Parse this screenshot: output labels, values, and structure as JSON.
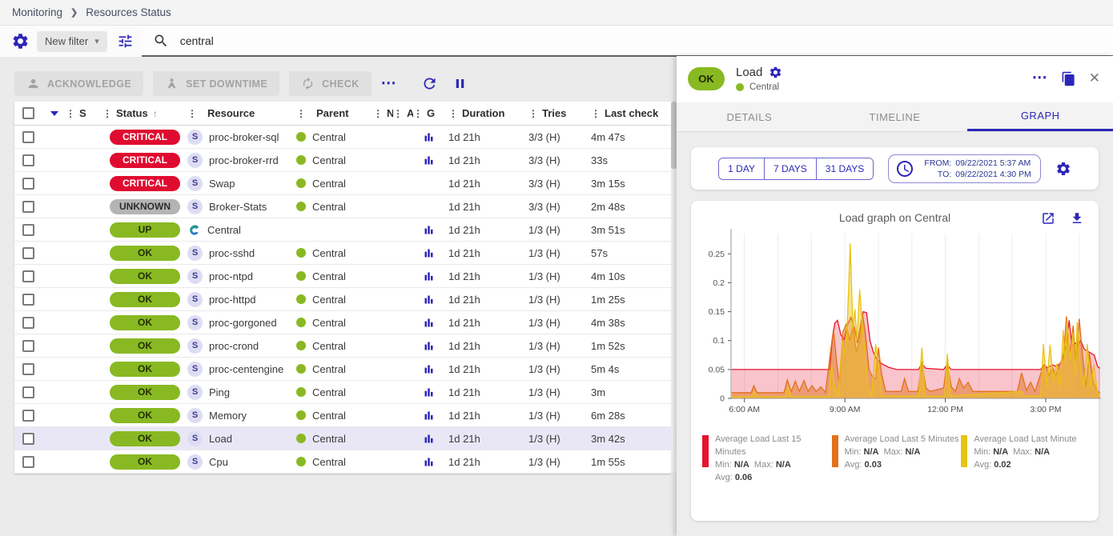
{
  "breadcrumb": {
    "items": [
      "Monitoring",
      "Resources Status"
    ]
  },
  "icons": {
    "drag": "⋮",
    "sort_asc": "↑",
    "caret_down": "▾",
    "more": "⋯",
    "close": "✕",
    "chevron": "❯"
  },
  "filter_bar": {
    "new_filter_label": "New filter",
    "search_value": "central"
  },
  "toolbar": {
    "acknowledge": "ACKNOWLEDGE",
    "set_downtime": "SET DOWNTIME",
    "check": "CHECK"
  },
  "table": {
    "columns": [
      "S",
      "Status",
      "Resource",
      "Parent",
      "N",
      "A",
      "G",
      "Duration",
      "Tries",
      "Last check"
    ],
    "rows": [
      {
        "status": "CRITICAL",
        "severity": "critical",
        "resource": "proc-broker-sql",
        "resource_icon": "service",
        "parent": "Central",
        "graph": true,
        "duration": "1d 21h",
        "tries": "3/3 (H)",
        "last_check": "4m 47s",
        "selected": false
      },
      {
        "status": "CRITICAL",
        "severity": "critical",
        "resource": "proc-broker-rrd",
        "resource_icon": "service",
        "parent": "Central",
        "graph": true,
        "duration": "1d 21h",
        "tries": "3/3 (H)",
        "last_check": "33s",
        "selected": false
      },
      {
        "status": "CRITICAL",
        "severity": "critical",
        "resource": "Swap",
        "resource_icon": "service",
        "parent": "Central",
        "graph": false,
        "duration": "1d 21h",
        "tries": "3/3 (H)",
        "last_check": "3m 15s",
        "selected": false
      },
      {
        "status": "UNKNOWN",
        "severity": "unknown",
        "resource": "Broker-Stats",
        "resource_icon": "service",
        "parent": "Central",
        "graph": false,
        "duration": "1d 21h",
        "tries": "3/3 (H)",
        "last_check": "2m 48s",
        "selected": false
      },
      {
        "status": "UP",
        "severity": "up",
        "resource": "Central",
        "resource_icon": "host",
        "parent": "",
        "graph": true,
        "duration": "1d 21h",
        "tries": "1/3 (H)",
        "last_check": "3m 51s",
        "selected": false
      },
      {
        "status": "OK",
        "severity": "ok",
        "resource": "proc-sshd",
        "resource_icon": "service",
        "parent": "Central",
        "graph": true,
        "duration": "1d 21h",
        "tries": "1/3 (H)",
        "last_check": "57s",
        "selected": false
      },
      {
        "status": "OK",
        "severity": "ok",
        "resource": "proc-ntpd",
        "resource_icon": "service",
        "parent": "Central",
        "graph": true,
        "duration": "1d 21h",
        "tries": "1/3 (H)",
        "last_check": "4m 10s",
        "selected": false
      },
      {
        "status": "OK",
        "severity": "ok",
        "resource": "proc-httpd",
        "resource_icon": "service",
        "parent": "Central",
        "graph": true,
        "duration": "1d 21h",
        "tries": "1/3 (H)",
        "last_check": "1m 25s",
        "selected": false
      },
      {
        "status": "OK",
        "severity": "ok",
        "resource": "proc-gorgoned",
        "resource_icon": "service",
        "parent": "Central",
        "graph": true,
        "duration": "1d 21h",
        "tries": "1/3 (H)",
        "last_check": "4m 38s",
        "selected": false
      },
      {
        "status": "OK",
        "severity": "ok",
        "resource": "proc-crond",
        "resource_icon": "service",
        "parent": "Central",
        "graph": true,
        "duration": "1d 21h",
        "tries": "1/3 (H)",
        "last_check": "1m 52s",
        "selected": false
      },
      {
        "status": "OK",
        "severity": "ok",
        "resource": "proc-centengine",
        "resource_icon": "service",
        "parent": "Central",
        "graph": true,
        "duration": "1d 21h",
        "tries": "1/3 (H)",
        "last_check": "5m 4s",
        "selected": false
      },
      {
        "status": "OK",
        "severity": "ok",
        "resource": "Ping",
        "resource_icon": "service",
        "parent": "Central",
        "graph": true,
        "duration": "1d 21h",
        "tries": "1/3 (H)",
        "last_check": "3m",
        "selected": false
      },
      {
        "status": "OK",
        "severity": "ok",
        "resource": "Memory",
        "resource_icon": "service",
        "parent": "Central",
        "graph": true,
        "duration": "1d 21h",
        "tries": "1/3 (H)",
        "last_check": "6m 28s",
        "selected": false
      },
      {
        "status": "OK",
        "severity": "ok",
        "resource": "Load",
        "resource_icon": "service",
        "parent": "Central",
        "graph": true,
        "duration": "1d 21h",
        "tries": "1/3 (H)",
        "last_check": "3m 42s",
        "selected": true
      },
      {
        "status": "OK",
        "severity": "ok",
        "resource": "Cpu",
        "resource_icon": "service",
        "parent": "Central",
        "graph": true,
        "duration": "1d 21h",
        "tries": "1/3 (H)",
        "last_check": "1m 55s",
        "selected": false
      }
    ]
  },
  "panel": {
    "status": "OK",
    "title": "Load",
    "subtitle": "Central",
    "tabs": [
      {
        "label": "DETAILS"
      },
      {
        "label": "TIMELINE"
      },
      {
        "label": "GRAPH"
      }
    ],
    "range_buttons": [
      "1 DAY",
      "7 DAYS",
      "31 DAYS"
    ],
    "from_label": "FROM:",
    "from_value": "09/22/2021 5:37 AM",
    "to_label": "TO:",
    "to_value": "09/22/2021 4:30 PM"
  },
  "legend_labels": {
    "min": "Min:",
    "max": "Max:",
    "avg": "Avg:"
  },
  "colors": {
    "accent": "#2c26b8",
    "critical": "#e00b30",
    "success": "#88b922",
    "unknown": "#b4b4b4",
    "selected_row": "#e9e7f6"
  },
  "chart_data": {
    "type": "area",
    "title": "Load graph on Central",
    "xlabel": "",
    "ylabel": "",
    "xlim_hours": [
      5.6,
      16.65
    ],
    "ylim": [
      0,
      0.285
    ],
    "grid": "vertical-hourly",
    "legend_position": "bottom",
    "x_ticks": [
      {
        "hour": 6,
        "label": "6:00 AM"
      },
      {
        "hour": 9,
        "label": "9:00 AM"
      },
      {
        "hour": 12,
        "label": "12:00 PM"
      },
      {
        "hour": 15,
        "label": "3:00 PM"
      }
    ],
    "y_ticks": [
      {
        "v": 0,
        "label": "0"
      },
      {
        "v": 0.05,
        "label": "0.05"
      },
      {
        "v": 0.1,
        "label": "0.1"
      },
      {
        "v": 0.15,
        "label": "0.15"
      },
      {
        "v": 0.2,
        "label": "0.2"
      },
      {
        "v": 0.25,
        "label": "0.25"
      }
    ],
    "series": [
      {
        "name": "Average Load Last 15 Minutes",
        "color": "#e8132e",
        "fill_opacity": 0.25,
        "min": "N/A",
        "max": "N/A",
        "avg": "0.06",
        "points": [
          [
            5.62,
            0.05
          ],
          [
            8.55,
            0.05
          ],
          [
            8.62,
            0.1
          ],
          [
            8.7,
            0.13
          ],
          [
            8.78,
            0.135
          ],
          [
            8.88,
            0.11
          ],
          [
            8.98,
            0.102
          ],
          [
            9.08,
            0.128
          ],
          [
            9.18,
            0.14
          ],
          [
            9.28,
            0.122
          ],
          [
            9.38,
            0.096
          ],
          [
            9.48,
            0.13
          ],
          [
            9.55,
            0.15
          ],
          [
            9.65,
            0.148
          ],
          [
            9.75,
            0.1
          ],
          [
            9.85,
            0.08
          ],
          [
            9.95,
            0.068
          ],
          [
            10.1,
            0.06
          ],
          [
            10.3,
            0.054
          ],
          [
            10.55,
            0.05
          ],
          [
            11.2,
            0.05
          ],
          [
            11.3,
            0.06
          ],
          [
            11.42,
            0.052
          ],
          [
            11.95,
            0.05
          ],
          [
            12.05,
            0.058
          ],
          [
            12.18,
            0.05
          ],
          [
            14.85,
            0.05
          ],
          [
            14.95,
            0.058
          ],
          [
            15.05,
            0.053
          ],
          [
            15.2,
            0.058
          ],
          [
            15.32,
            0.055
          ],
          [
            15.45,
            0.062
          ],
          [
            15.55,
            0.08
          ],
          [
            15.62,
            0.095
          ],
          [
            15.7,
            0.135
          ],
          [
            15.78,
            0.09
          ],
          [
            15.88,
            0.096
          ],
          [
            15.95,
            0.09
          ],
          [
            16.05,
            0.1
          ],
          [
            16.15,
            0.085
          ],
          [
            16.3,
            0.08
          ],
          [
            16.45,
            0.075
          ],
          [
            16.55,
            0.055
          ],
          [
            16.62,
            0.052
          ]
        ]
      },
      {
        "name": "Average Load Last 5 Minutes",
        "color": "#e2711d",
        "fill_opacity": 0.5,
        "min": "N/A",
        "max": "N/A",
        "avg": "0.03",
        "points": [
          [
            5.62,
            0.01
          ],
          [
            6.2,
            0.01
          ],
          [
            6.28,
            0.022
          ],
          [
            6.38,
            0.01
          ],
          [
            7.18,
            0.01
          ],
          [
            7.28,
            0.032
          ],
          [
            7.4,
            0.012
          ],
          [
            7.52,
            0.03
          ],
          [
            7.64,
            0.012
          ],
          [
            7.78,
            0.031
          ],
          [
            7.9,
            0.012
          ],
          [
            8.02,
            0.022
          ],
          [
            8.14,
            0.012
          ],
          [
            8.28,
            0.02
          ],
          [
            8.42,
            0.01
          ],
          [
            8.58,
            0.085
          ],
          [
            8.66,
            0.12
          ],
          [
            8.76,
            0.06
          ],
          [
            8.84,
            0.024
          ],
          [
            8.94,
            0.115
          ],
          [
            9.04,
            0.128
          ],
          [
            9.14,
            0.1
          ],
          [
            9.24,
            0.125
          ],
          [
            9.34,
            0.08
          ],
          [
            9.44,
            0.1
          ],
          [
            9.52,
            0.148
          ],
          [
            9.62,
            0.11
          ],
          [
            9.72,
            0.05
          ],
          [
            9.82,
            0.038
          ],
          [
            9.92,
            0.034
          ],
          [
            10.0,
            0.088
          ],
          [
            10.1,
            0.042
          ],
          [
            10.22,
            0.012
          ],
          [
            10.68,
            0.012
          ],
          [
            10.78,
            0.034
          ],
          [
            10.9,
            0.012
          ],
          [
            11.18,
            0.012
          ],
          [
            11.3,
            0.064
          ],
          [
            11.42,
            0.018
          ],
          [
            11.55,
            0.012
          ],
          [
            11.95,
            0.018
          ],
          [
            12.05,
            0.063
          ],
          [
            12.18,
            0.02
          ],
          [
            12.3,
            0.012
          ],
          [
            12.42,
            0.034
          ],
          [
            12.55,
            0.018
          ],
          [
            12.68,
            0.028
          ],
          [
            12.82,
            0.012
          ],
          [
            14.15,
            0.012
          ],
          [
            14.28,
            0.044
          ],
          [
            14.42,
            0.014
          ],
          [
            14.55,
            0.028
          ],
          [
            14.68,
            0.012
          ],
          [
            14.88,
            0.048
          ],
          [
            14.98,
            0.058
          ],
          [
            15.1,
            0.04
          ],
          [
            15.2,
            0.054
          ],
          [
            15.3,
            0.04
          ],
          [
            15.42,
            0.06
          ],
          [
            15.52,
            0.068
          ],
          [
            15.62,
            0.142
          ],
          [
            15.72,
            0.078
          ],
          [
            15.82,
            0.126
          ],
          [
            15.9,
            0.058
          ],
          [
            16.0,
            0.138
          ],
          [
            16.1,
            0.076
          ],
          [
            16.2,
            0.02
          ],
          [
            16.3,
            0.078
          ],
          [
            16.42,
            0.028
          ],
          [
            16.55,
            0.012
          ],
          [
            16.62,
            0.01
          ]
        ]
      },
      {
        "name": "Average Load Last Minute",
        "color": "#e9c313",
        "fill_opacity": 0.45,
        "min": "N/A",
        "max": "N/A",
        "avg": "0.02",
        "points": [
          [
            5.62,
            0.003
          ],
          [
            6.22,
            0.003
          ],
          [
            6.3,
            0.012
          ],
          [
            6.4,
            0.003
          ],
          [
            7.22,
            0.003
          ],
          [
            7.3,
            0.02
          ],
          [
            7.4,
            0.003
          ],
          [
            8.52,
            0.003
          ],
          [
            8.6,
            0.058
          ],
          [
            8.7,
            0.02
          ],
          [
            8.8,
            0.004
          ],
          [
            8.92,
            0.1
          ],
          [
            9.0,
            0.075
          ],
          [
            9.08,
            0.14
          ],
          [
            9.16,
            0.268
          ],
          [
            9.24,
            0.12
          ],
          [
            9.3,
            0.154
          ],
          [
            9.36,
            0.1
          ],
          [
            9.44,
            0.188
          ],
          [
            9.52,
            0.128
          ],
          [
            9.6,
            0.078
          ],
          [
            9.7,
            0.02
          ],
          [
            9.8,
            0.004
          ],
          [
            9.92,
            0.094
          ],
          [
            10.02,
            0.05
          ],
          [
            10.12,
            0.004
          ],
          [
            11.2,
            0.004
          ],
          [
            11.3,
            0.088
          ],
          [
            11.4,
            0.004
          ],
          [
            11.98,
            0.004
          ],
          [
            12.06,
            0.077
          ],
          [
            12.16,
            0.004
          ],
          [
            14.25,
            0.012
          ],
          [
            14.38,
            0.004
          ],
          [
            14.85,
            0.004
          ],
          [
            14.93,
            0.094
          ],
          [
            15.03,
            0.02
          ],
          [
            15.13,
            0.093
          ],
          [
            15.23,
            0.028
          ],
          [
            15.33,
            0.06
          ],
          [
            15.43,
            0.02
          ],
          [
            15.52,
            0.118
          ],
          [
            15.58,
            0.06
          ],
          [
            15.64,
            0.136
          ],
          [
            15.73,
            0.068
          ],
          [
            15.82,
            0.114
          ],
          [
            15.88,
            0.04
          ],
          [
            15.94,
            0.132
          ],
          [
            16.04,
            0.05
          ],
          [
            16.14,
            0.02
          ],
          [
            16.24,
            0.094
          ],
          [
            16.34,
            0.02
          ],
          [
            16.44,
            0.058
          ],
          [
            16.54,
            0.012
          ],
          [
            16.62,
            0.004
          ]
        ]
      }
    ]
  }
}
